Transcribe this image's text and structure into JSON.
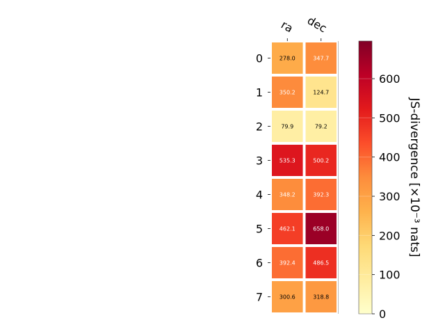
{
  "chart_data": {
    "type": "heatmap",
    "columns": [
      "ra",
      "dec"
    ],
    "rows": [
      "0",
      "1",
      "2",
      "3",
      "4",
      "5",
      "6",
      "7"
    ],
    "values": [
      [
        278.0,
        347.7
      ],
      [
        350.2,
        124.7
      ],
      [
        79.9,
        79.2
      ],
      [
        535.3,
        500.2
      ],
      [
        348.2,
        392.3
      ],
      [
        462.1,
        658.0
      ],
      [
        392.4,
        486.5
      ],
      [
        300.6,
        318.8
      ]
    ],
    "value_format": "0.1",
    "colormap": "YlOrRd",
    "color_range": [
      0,
      696
    ],
    "colorbar": {
      "label": "JS-divergence [×10⁻³ nats]",
      "ticks": [
        0,
        100,
        200,
        300,
        400,
        500,
        600
      ]
    }
  }
}
